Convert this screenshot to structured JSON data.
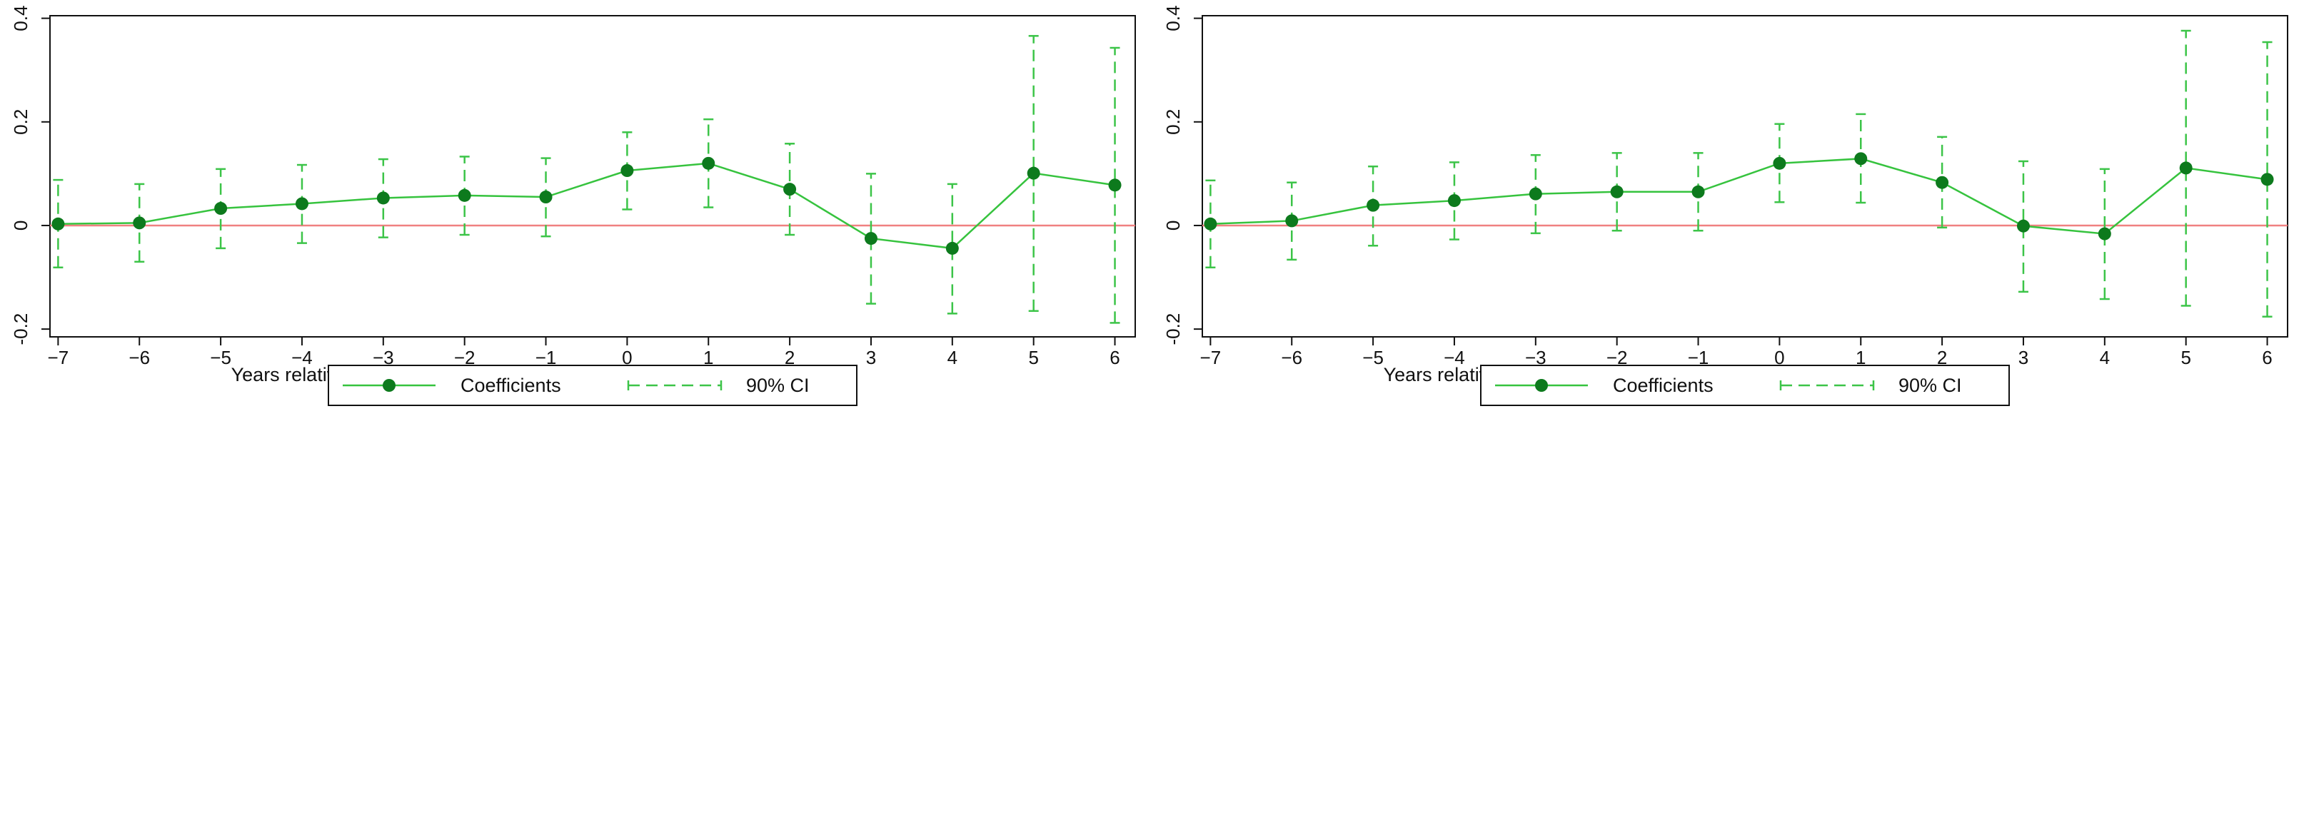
{
  "chart_data": [
    {
      "type": "line",
      "xlabel": "Years relative to the PFTZ establishment",
      "ylabel": "",
      "x": [
        -7,
        -6,
        -5,
        -4,
        -3,
        -2,
        -1,
        0,
        1,
        2,
        3,
        4,
        5,
        6
      ],
      "xlim": [
        -7.1,
        6.25
      ],
      "ylim": [
        -0.215,
        0.405
      ],
      "yticks": [
        -0.2,
        0,
        0.2,
        0.4
      ],
      "ytick_labels": [
        "-0.2",
        "0",
        "0.2",
        "0.4"
      ],
      "reference_line": {
        "y": 0,
        "color": "#f08080"
      },
      "series": [
        {
          "name": "Coefficients",
          "kind": "line",
          "values": [
            0.003,
            0.005,
            0.033,
            0.042,
            0.053,
            0.058,
            0.055,
            0.106,
            0.12,
            0.07,
            -0.025,
            -0.044,
            0.101,
            0.078
          ]
        },
        {
          "name": "90% CI",
          "kind": "interval",
          "lower": [
            -0.081,
            -0.07,
            -0.044,
            -0.034,
            -0.023,
            -0.018,
            -0.021,
            0.031,
            0.035,
            -0.018,
            -0.151,
            -0.17,
            -0.165,
            -0.188
          ],
          "upper": [
            0.088,
            0.08,
            0.109,
            0.117,
            0.128,
            0.133,
            0.13,
            0.18,
            0.205,
            0.158,
            0.1,
            0.08,
            0.366,
            0.343
          ]
        }
      ],
      "legend": {
        "placement": "bottom",
        "items": [
          "Coefficients",
          "90% CI"
        ]
      },
      "grid": false,
      "colors": {
        "line": "#36c33e",
        "marker": "#0d7a1d",
        "ci": "#3cc448",
        "zero": "#f08080"
      }
    },
    {
      "type": "line",
      "xlabel": "Years relative to the PFTZ establishment",
      "ylabel": "",
      "x": [
        -7,
        -6,
        -5,
        -4,
        -3,
        -2,
        -1,
        0,
        1,
        2,
        3,
        4,
        5,
        6
      ],
      "xlim": [
        -7.1,
        6.25
      ],
      "ylim": [
        -0.215,
        0.405
      ],
      "yticks": [
        -0.2,
        0,
        0.2,
        0.4
      ],
      "ytick_labels": [
        "-0.2",
        "0",
        "0.2",
        "0.4"
      ],
      "reference_line": {
        "y": 0,
        "color": "#f08080"
      },
      "series": [
        {
          "name": "Coefficients",
          "kind": "line",
          "values": [
            0.003,
            0.009,
            0.039,
            0.048,
            0.061,
            0.065,
            0.065,
            0.12,
            0.129,
            0.083,
            -0.001,
            -0.016,
            0.111,
            0.089
          ]
        },
        {
          "name": "90% CI",
          "kind": "interval",
          "lower": [
            -0.081,
            -0.066,
            -0.039,
            -0.027,
            -0.015,
            -0.01,
            -0.01,
            0.045,
            0.044,
            -0.004,
            -0.128,
            -0.142,
            -0.155,
            -0.176
          ],
          "upper": [
            0.087,
            0.083,
            0.114,
            0.122,
            0.136,
            0.14,
            0.14,
            0.196,
            0.215,
            0.171,
            0.124,
            0.109,
            0.376,
            0.354
          ]
        }
      ],
      "legend": {
        "placement": "bottom",
        "items": [
          "Coefficients",
          "90% CI"
        ]
      },
      "grid": false,
      "colors": {
        "line": "#36c33e",
        "marker": "#0d7a1d",
        "ci": "#3cc448",
        "zero": "#f08080"
      }
    }
  ]
}
